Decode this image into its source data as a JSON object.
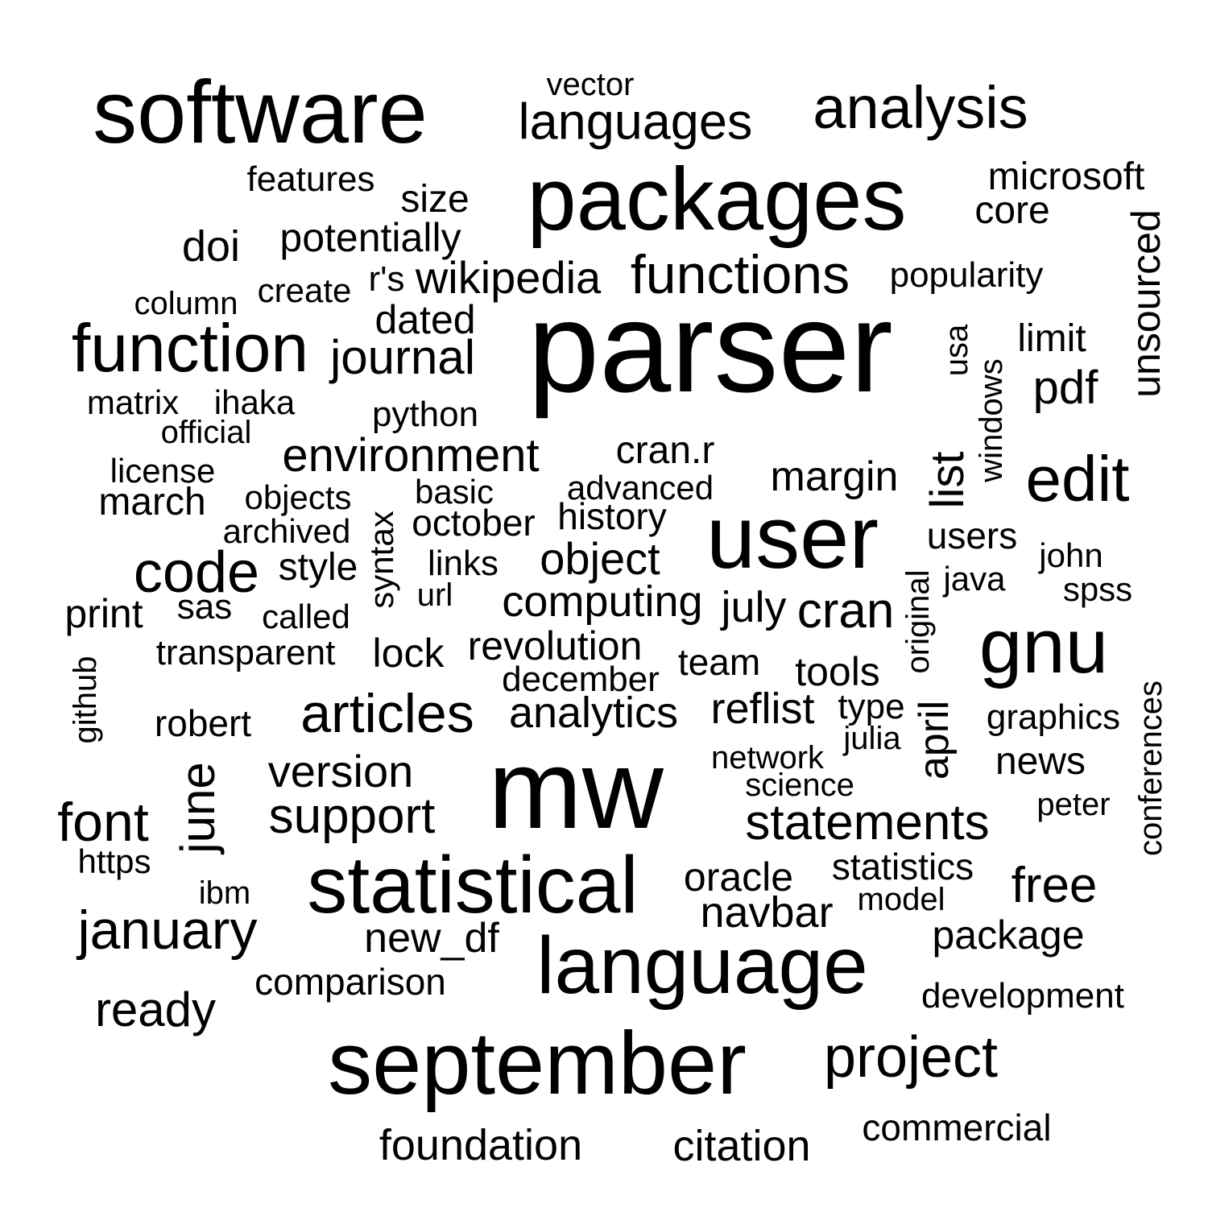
{
  "style": {
    "background": "#ffffff",
    "text_color": "#000000"
  },
  "words": [
    {
      "text": "software"
    },
    {
      "text": "vector"
    },
    {
      "text": "languages"
    },
    {
      "text": "analysis"
    },
    {
      "text": "features"
    },
    {
      "text": "size"
    },
    {
      "text": "packages"
    },
    {
      "text": "microsoft"
    },
    {
      "text": "core"
    },
    {
      "text": "doi"
    },
    {
      "text": "potentially"
    },
    {
      "text": "unsourced"
    },
    {
      "text": "column"
    },
    {
      "text": "create"
    },
    {
      "text": "r's"
    },
    {
      "text": "wikipedia"
    },
    {
      "text": "functions"
    },
    {
      "text": "popularity"
    },
    {
      "text": "dated"
    },
    {
      "text": "parser"
    },
    {
      "text": "function"
    },
    {
      "text": "journal"
    },
    {
      "text": "usa"
    },
    {
      "text": "windows"
    },
    {
      "text": "limit"
    },
    {
      "text": "pdf"
    },
    {
      "text": "matrix"
    },
    {
      "text": "ihaka"
    },
    {
      "text": "python"
    },
    {
      "text": "official"
    },
    {
      "text": "environment"
    },
    {
      "text": "cran.r"
    },
    {
      "text": "license"
    },
    {
      "text": "margin"
    },
    {
      "text": "list"
    },
    {
      "text": "edit"
    },
    {
      "text": "basic"
    },
    {
      "text": "advanced"
    },
    {
      "text": "march"
    },
    {
      "text": "objects"
    },
    {
      "text": "syntax"
    },
    {
      "text": "october"
    },
    {
      "text": "history"
    },
    {
      "text": "archived"
    },
    {
      "text": "user"
    },
    {
      "text": "users"
    },
    {
      "text": "object"
    },
    {
      "text": "links"
    },
    {
      "text": "code"
    },
    {
      "text": "style"
    },
    {
      "text": "john"
    },
    {
      "text": "original"
    },
    {
      "text": "java"
    },
    {
      "text": "url"
    },
    {
      "text": "spss"
    },
    {
      "text": "computing"
    },
    {
      "text": "july"
    },
    {
      "text": "cran"
    },
    {
      "text": "print"
    },
    {
      "text": "sas"
    },
    {
      "text": "called"
    },
    {
      "text": "gnu"
    },
    {
      "text": "revolution"
    },
    {
      "text": "lock"
    },
    {
      "text": "transparent"
    },
    {
      "text": "team"
    },
    {
      "text": "tools"
    },
    {
      "text": "github"
    },
    {
      "text": "december"
    },
    {
      "text": "conferences"
    },
    {
      "text": "articles"
    },
    {
      "text": "analytics"
    },
    {
      "text": "reflist"
    },
    {
      "text": "type"
    },
    {
      "text": "april"
    },
    {
      "text": "graphics"
    },
    {
      "text": "robert"
    },
    {
      "text": "julia"
    },
    {
      "text": "network"
    },
    {
      "text": "news"
    },
    {
      "text": "june"
    },
    {
      "text": "version"
    },
    {
      "text": "mw"
    },
    {
      "text": "science"
    },
    {
      "text": "peter"
    },
    {
      "text": "font"
    },
    {
      "text": "support"
    },
    {
      "text": "statements"
    },
    {
      "text": "https"
    },
    {
      "text": "statistical"
    },
    {
      "text": "statistics"
    },
    {
      "text": "oracle"
    },
    {
      "text": "free"
    },
    {
      "text": "ibm"
    },
    {
      "text": "model"
    },
    {
      "text": "navbar"
    },
    {
      "text": "january"
    },
    {
      "text": "new_df"
    },
    {
      "text": "package"
    },
    {
      "text": "language"
    },
    {
      "text": "comparison"
    },
    {
      "text": "development"
    },
    {
      "text": "ready"
    },
    {
      "text": "september"
    },
    {
      "text": "project"
    },
    {
      "text": "foundation"
    },
    {
      "text": "citation"
    },
    {
      "text": "commercial"
    }
  ]
}
